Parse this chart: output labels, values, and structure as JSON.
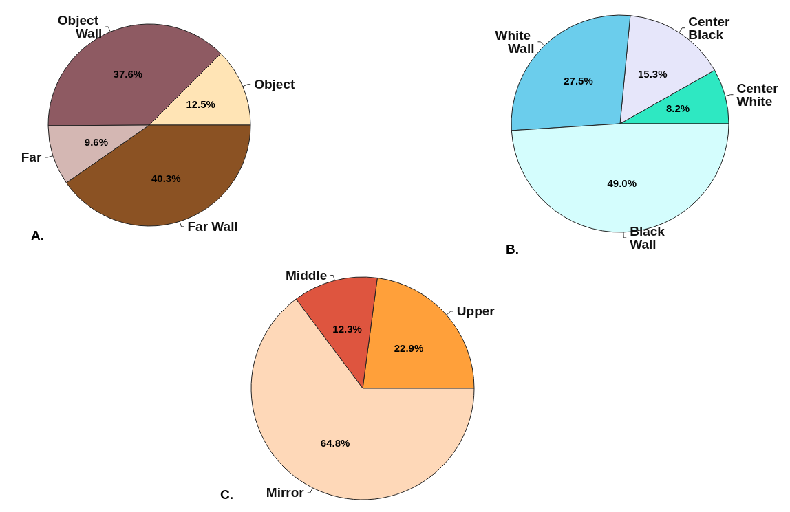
{
  "chart_data": [
    {
      "type": "pie",
      "title": "A.",
      "categories": [
        "Object",
        "Object Wall",
        "Far",
        "Far Wall"
      ],
      "values": [
        12.5,
        37.6,
        9.6,
        40.3
      ],
      "colors": [
        "#ffe4b5",
        "#8e5a62",
        "#d4b7b3",
        "#8b5223"
      ],
      "value_labels": [
        "12.5%",
        "37.6%",
        "9.6%",
        "40.3%"
      ]
    },
    {
      "type": "pie",
      "title": "B.",
      "categories": [
        "Center White",
        "Center Black",
        "White Wall",
        "Black Wall"
      ],
      "values": [
        8.2,
        15.3,
        27.5,
        49.0
      ],
      "colors": [
        "#2ee8c2",
        "#e6e6fa",
        "#6bcdec",
        "#d4fdfd"
      ],
      "value_labels": [
        "8.2%",
        "15.3%",
        "27.5%",
        "49.0%"
      ]
    },
    {
      "type": "pie",
      "title": "C.",
      "categories": [
        "Upper",
        "Middle",
        "Mirror"
      ],
      "values": [
        22.9,
        12.3,
        64.8
      ],
      "colors": [
        "#ffa03a",
        "#de553f",
        "#fed8b8"
      ],
      "value_labels": [
        "22.9%",
        "12.3%",
        "64.8%"
      ]
    }
  ]
}
